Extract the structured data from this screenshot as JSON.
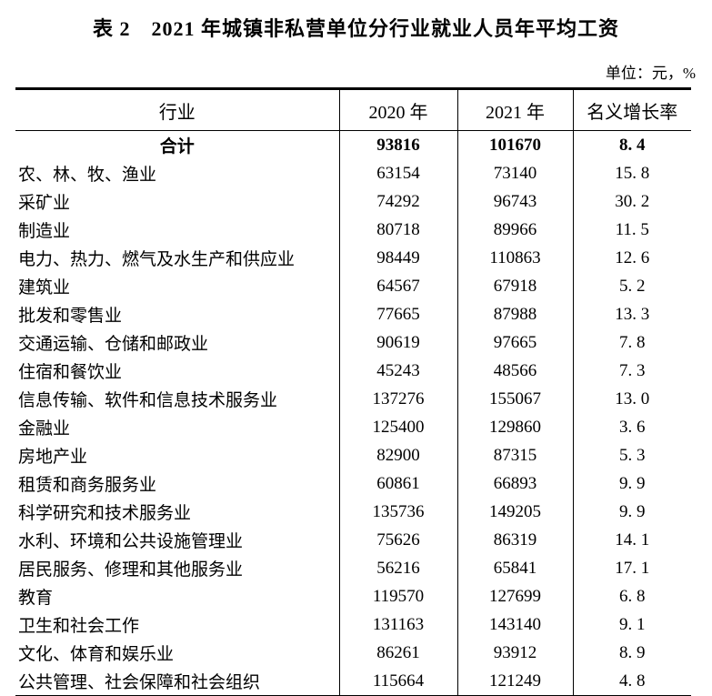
{
  "title": "表 2　2021 年城镇非私营单位分行业就业人员年平均工资",
  "unit_label": "单位：元，%",
  "table": {
    "columns": [
      "行业",
      "2020 年",
      "2021 年",
      "名义增长率"
    ],
    "rows": [
      {
        "industry": "合计",
        "y2020": "93816",
        "y2021": "101670",
        "growth": "8. 4",
        "is_total": true
      },
      {
        "industry": "农、林、牧、渔业",
        "y2020": "63154",
        "y2021": "73140",
        "growth": "15. 8",
        "is_total": false
      },
      {
        "industry": "采矿业",
        "y2020": "74292",
        "y2021": "96743",
        "growth": "30. 2",
        "is_total": false
      },
      {
        "industry": "制造业",
        "y2020": "80718",
        "y2021": "89966",
        "growth": "11. 5",
        "is_total": false
      },
      {
        "industry": "电力、热力、燃气及水生产和供应业",
        "y2020": "98449",
        "y2021": "110863",
        "growth": "12. 6",
        "is_total": false
      },
      {
        "industry": "建筑业",
        "y2020": "64567",
        "y2021": "67918",
        "growth": "5. 2",
        "is_total": false
      },
      {
        "industry": "批发和零售业",
        "y2020": "77665",
        "y2021": "87988",
        "growth": "13. 3",
        "is_total": false
      },
      {
        "industry": "交通运输、仓储和邮政业",
        "y2020": "90619",
        "y2021": "97665",
        "growth": "7. 8",
        "is_total": false
      },
      {
        "industry": "住宿和餐饮业",
        "y2020": "45243",
        "y2021": "48566",
        "growth": "7. 3",
        "is_total": false
      },
      {
        "industry": "信息传输、软件和信息技术服务业",
        "y2020": "137276",
        "y2021": "155067",
        "growth": "13. 0",
        "is_total": false
      },
      {
        "industry": "金融业",
        "y2020": "125400",
        "y2021": "129860",
        "growth": "3. 6",
        "is_total": false
      },
      {
        "industry": "房地产业",
        "y2020": "82900",
        "y2021": "87315",
        "growth": "5. 3",
        "is_total": false
      },
      {
        "industry": "租赁和商务服务业",
        "y2020": "60861",
        "y2021": "66893",
        "growth": "9. 9",
        "is_total": false
      },
      {
        "industry": "科学研究和技术服务业",
        "y2020": "135736",
        "y2021": "149205",
        "growth": "9. 9",
        "is_total": false
      },
      {
        "industry": "水利、环境和公共设施管理业",
        "y2020": "75626",
        "y2021": "86319",
        "growth": "14. 1",
        "is_total": false
      },
      {
        "industry": "居民服务、修理和其他服务业",
        "y2020": "56216",
        "y2021": "65841",
        "growth": "17. 1",
        "is_total": false
      },
      {
        "industry": "教育",
        "y2020": "119570",
        "y2021": "127699",
        "growth": "6. 8",
        "is_total": false
      },
      {
        "industry": "卫生和社会工作",
        "y2020": "131163",
        "y2021": "143140",
        "growth": "9. 1",
        "is_total": false
      },
      {
        "industry": "文化、体育和娱乐业",
        "y2020": "86261",
        "y2021": "93912",
        "growth": "8. 9",
        "is_total": false
      },
      {
        "industry": "公共管理、社会保障和社会组织",
        "y2020": "115664",
        "y2021": "121249",
        "growth": "4. 8",
        "is_total": false
      }
    ]
  }
}
